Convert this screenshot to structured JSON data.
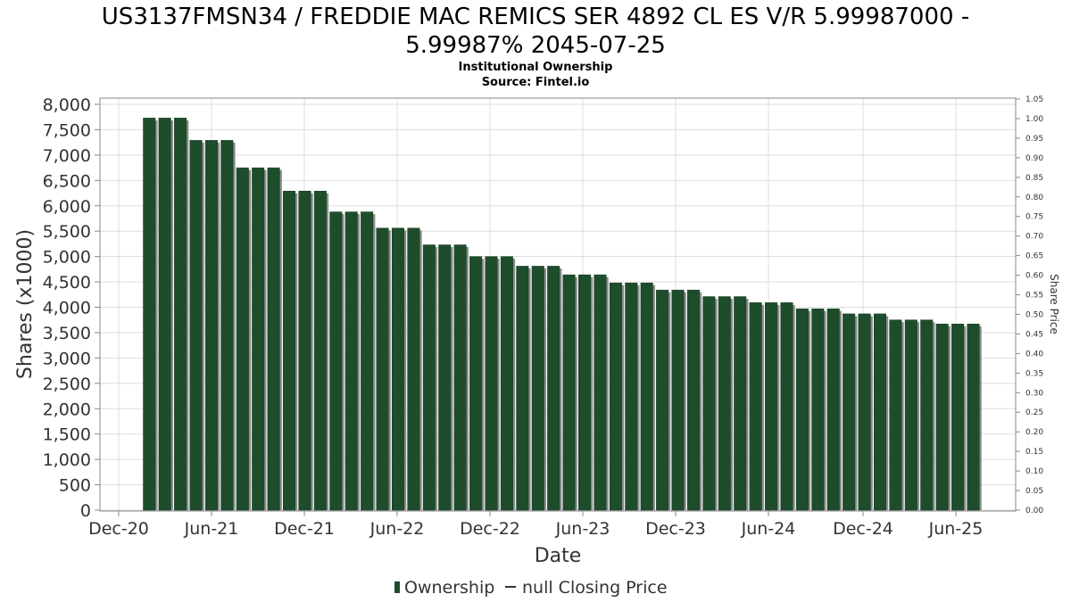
{
  "title_lines": [
    "US3137FMSN34 / FREDDIE MAC REMICS SER 4892 CL ES V/R 5.99987000 -",
    "5.99987% 2045-07-25"
  ],
  "subtitle": "Institutional Ownership",
  "source": "Source: Fintel.io",
  "chart_data": {
    "type": "bar",
    "xlabel": "Date",
    "ylabel": "Shares (x1000)",
    "y2label": "Share Price",
    "ylim": [
      0,
      8000
    ],
    "y_ticks": [
      "0",
      "500",
      "1,000",
      "1,500",
      "2,000",
      "2,500",
      "3,000",
      "3,500",
      "4,000",
      "4,500",
      "5,000",
      "5,500",
      "6,000",
      "6,500",
      "7,000",
      "7,500",
      "8,000"
    ],
    "y2lim": [
      0,
      1.05
    ],
    "y2_ticks": [
      "0.00",
      "0.05",
      "0.10",
      "0.15",
      "0.20",
      "0.25",
      "0.30",
      "0.35",
      "0.40",
      "0.45",
      "0.50",
      "0.55",
      "0.60",
      "0.65",
      "0.70",
      "0.75",
      "0.80",
      "0.85",
      "0.90",
      "0.95",
      "1.00",
      "1.05"
    ],
    "x_tick_labels": [
      "Dec-20",
      "Jun-21",
      "Dec-21",
      "Jun-22",
      "Dec-22",
      "Jun-23",
      "Dec-23",
      "Jun-24",
      "Dec-24",
      "Jun-25"
    ],
    "series": [
      {
        "name": "Ownership",
        "color": "#1e4d2b",
        "values": [
          7730,
          7730,
          7730,
          7290,
          7290,
          7290,
          6750,
          6750,
          6750,
          6290,
          6290,
          6290,
          5880,
          5880,
          5880,
          5560,
          5560,
          5560,
          5230,
          5230,
          5230,
          5000,
          5000,
          5000,
          4810,
          4810,
          4810,
          4640,
          4640,
          4640,
          4480,
          4480,
          4480,
          4340,
          4340,
          4340,
          4210,
          4210,
          4210,
          4090,
          4090,
          4090,
          3970,
          3970,
          3970,
          3870,
          3870,
          3870,
          3750,
          3750,
          3750,
          3670,
          3670,
          3670
        ]
      }
    ],
    "legend": {
      "position": "bottom-center",
      "items": [
        {
          "label": "Ownership",
          "type": "bar",
          "color": "#1e4d2b"
        },
        {
          "label": "null Closing Price",
          "type": "line",
          "color": "#333333"
        }
      ]
    },
    "grid": true
  }
}
